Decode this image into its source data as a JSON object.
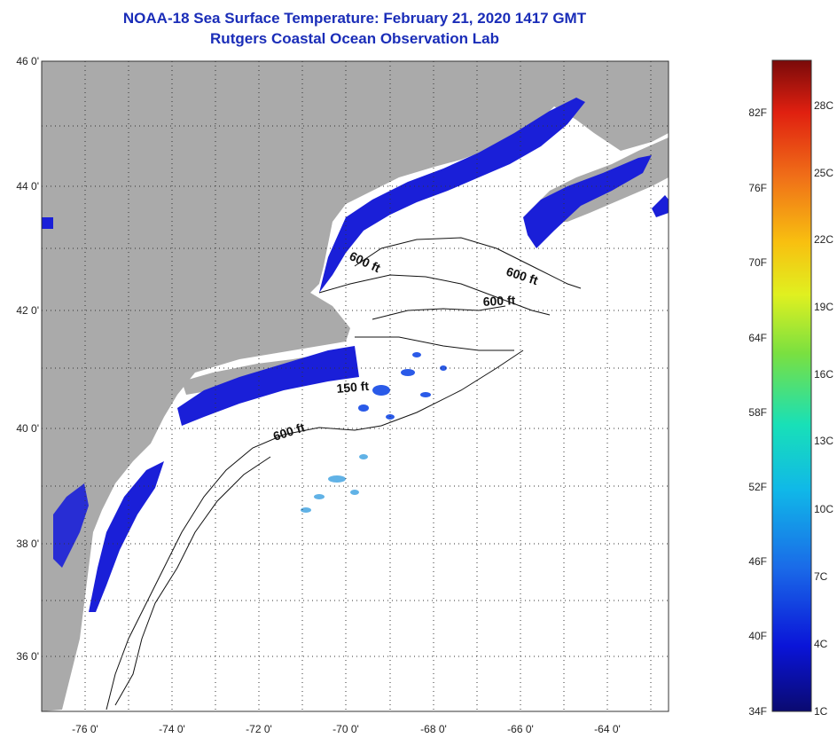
{
  "header": {
    "title": "NOAA-18 Sea Surface Temperature:  February 21, 2020 1417 GMT",
    "subtitle": "Rutgers Coastal Ocean Observation Lab"
  },
  "axes": {
    "lat_labels": [
      "46 0'",
      "44 0'",
      "42 0'",
      "40 0'",
      "38 0'",
      "36 0'"
    ],
    "lon_labels": [
      "-76 0'",
      "-74 0'",
      "-72 0'",
      "-70 0'",
      "-68 0'",
      "-66 0'",
      "-64 0'"
    ]
  },
  "contours": {
    "label_600_a": "600 ft",
    "label_600_b": "600 ft",
    "label_600_c": "600 ft",
    "label_150": "150 ft",
    "label_600_d": "600 ft"
  },
  "colorbar": {
    "fahrenheit": [
      "82F",
      "76F",
      "70F",
      "64F",
      "58F",
      "52F",
      "46F",
      "40F",
      "34F"
    ],
    "celsius": [
      "28C",
      "25C",
      "22C",
      "19C",
      "16C",
      "13C",
      "10C",
      "7C",
      "4C",
      "1C"
    ]
  },
  "colors": {
    "land": "#aaaaaa",
    "water_cold": "#1a1fd8",
    "title": "#1a2db8"
  }
}
